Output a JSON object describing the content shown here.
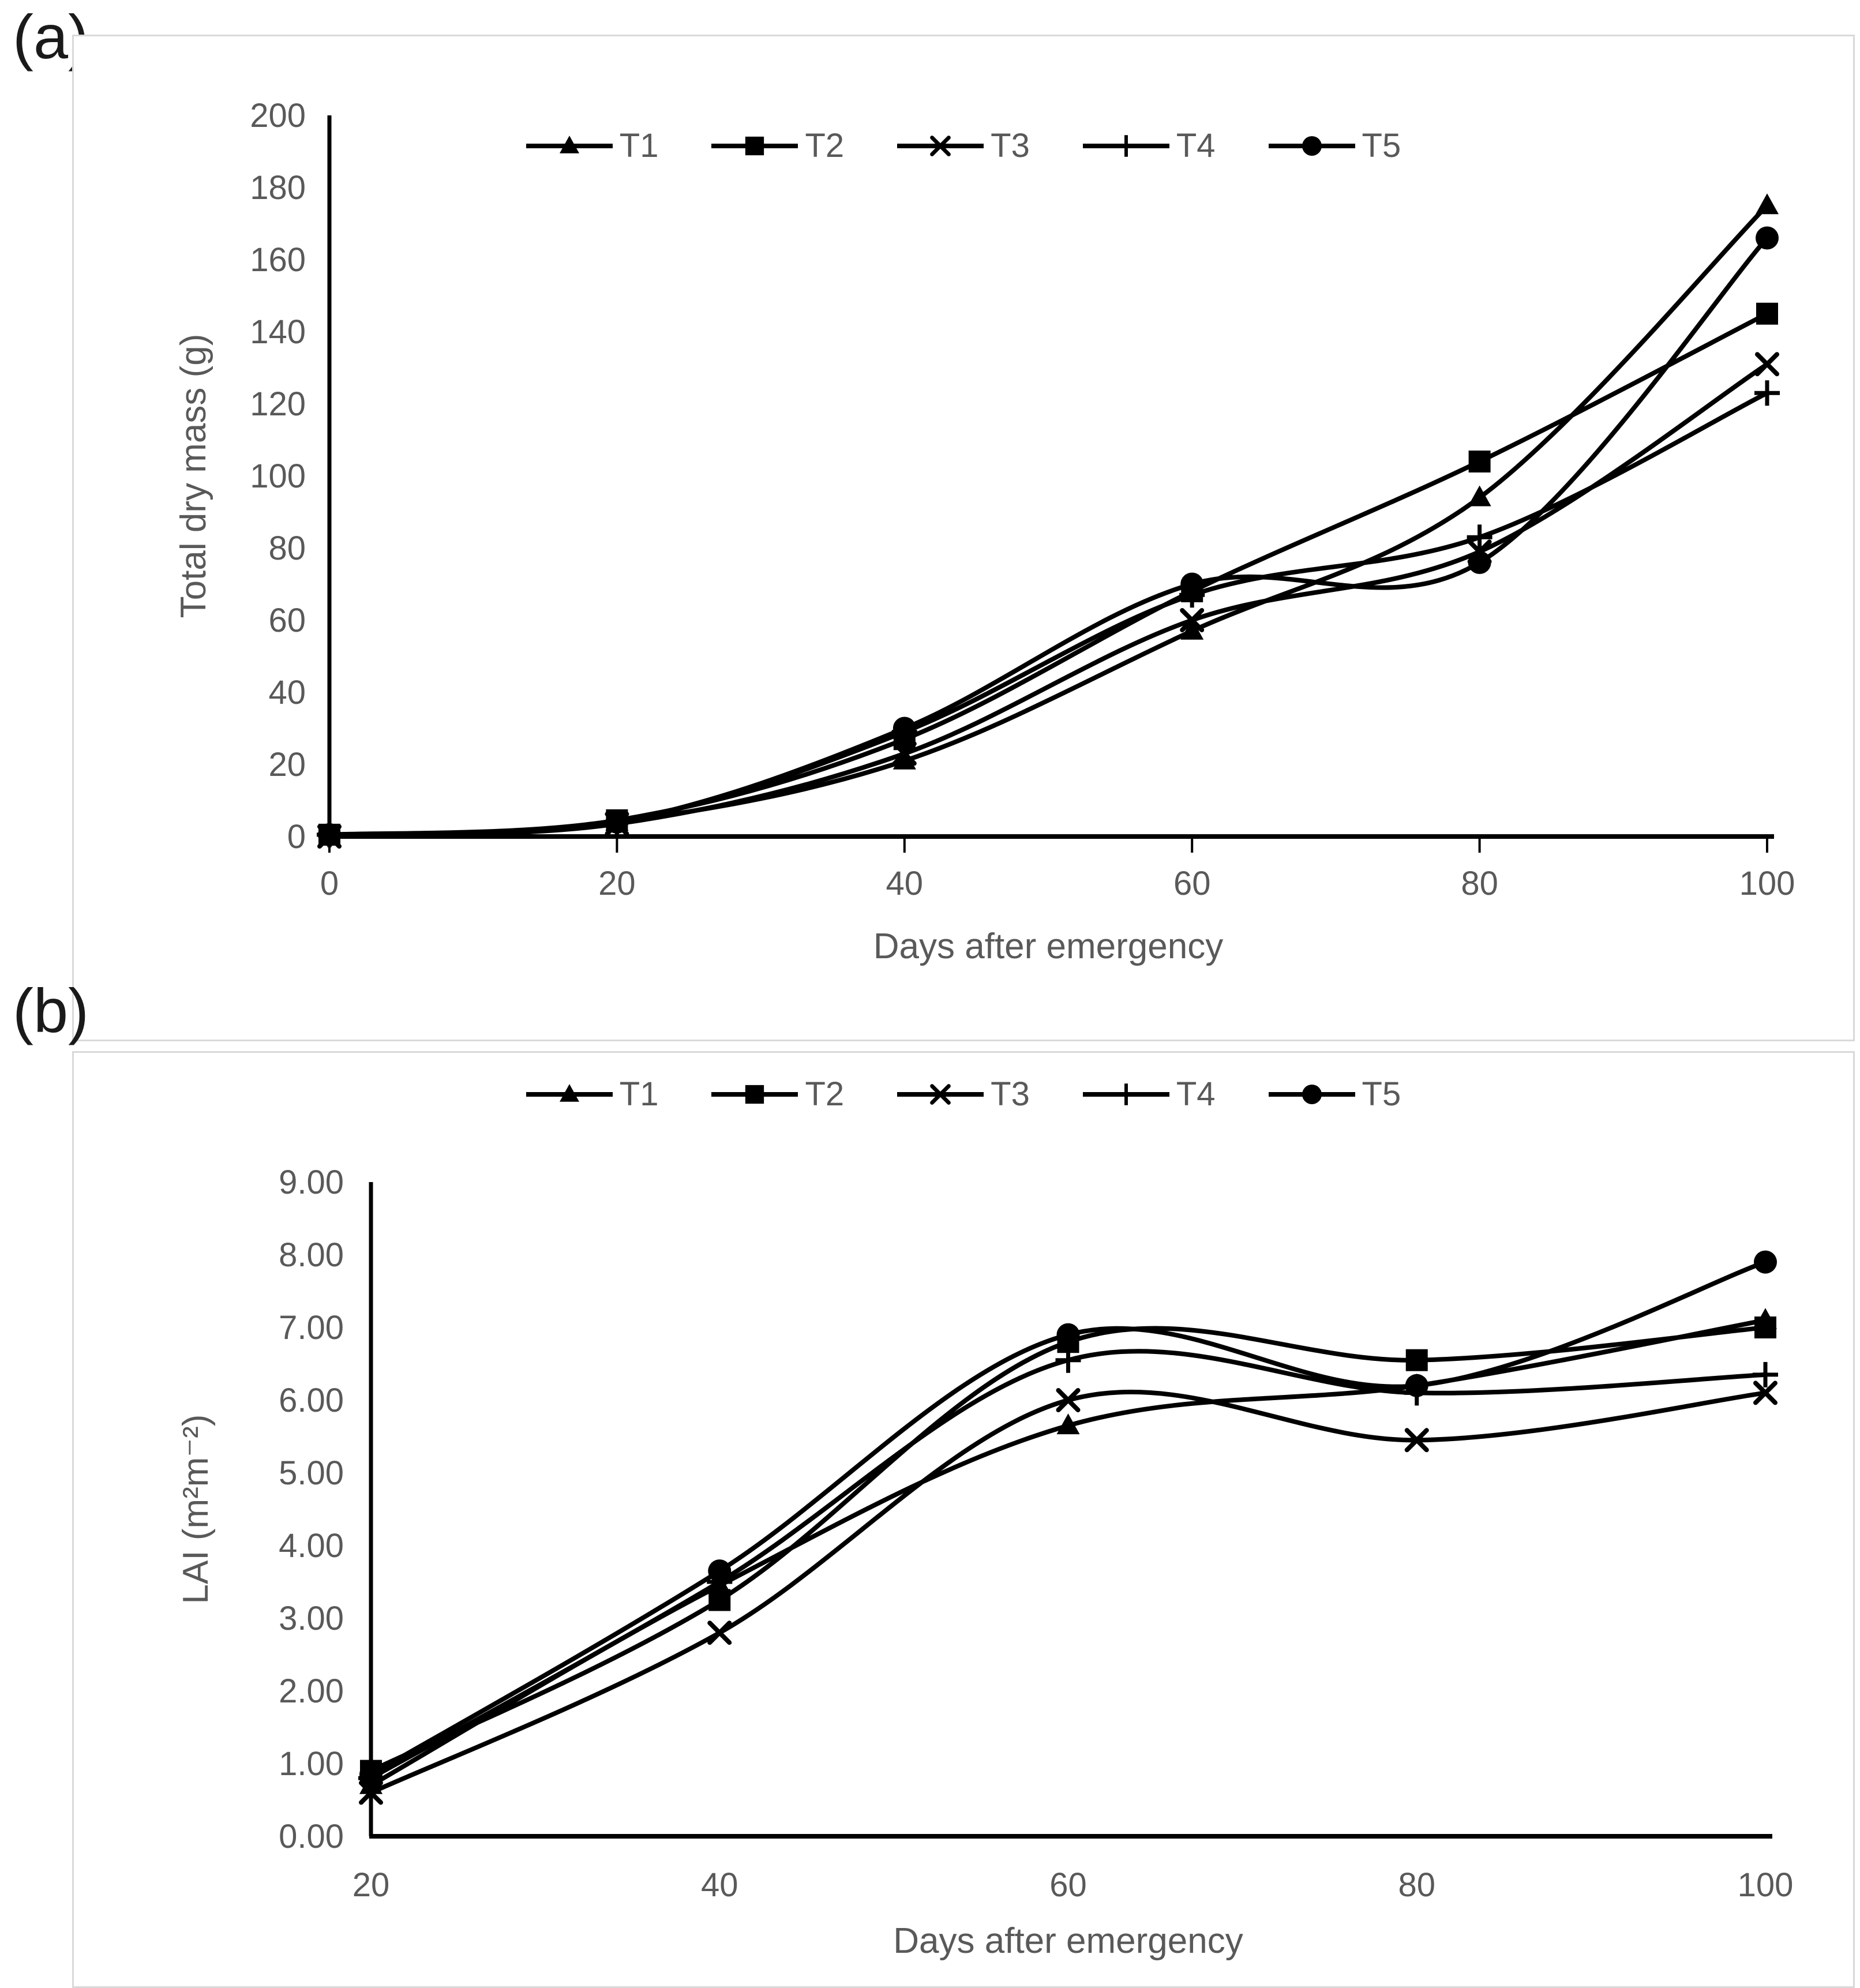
{
  "page": {
    "background": "#ffffff"
  },
  "colors": {
    "series_line": "#000000",
    "text": "#595959",
    "panel_label": "#1a1a1a",
    "chart_border": "#d9d9d9"
  },
  "chart_data": [
    {
      "type": "line",
      "panel_label": "(a)",
      "xlabel": "Days after emergency",
      "ylabel": "Total dry mass (g)",
      "xlim": [
        0,
        100
      ],
      "ylim": [
        0,
        200
      ],
      "grid": false,
      "legend_position": "top-center",
      "x": [
        0,
        20,
        40,
        60,
        80,
        100
      ],
      "x_ticks": [
        "0",
        "20",
        "40",
        "60",
        "80",
        "100"
      ],
      "y_ticks": [
        "0",
        "20",
        "40",
        "60",
        "80",
        "100",
        "120",
        "140",
        "160",
        "180",
        "200"
      ],
      "series": [
        {
          "name": "T1",
          "marker": "triangle",
          "values": [
            0,
            4,
            21,
            57,
            94,
            175
          ]
        },
        {
          "name": "T2",
          "marker": "square",
          "values": [
            0.5,
            4.5,
            27,
            68,
            104,
            145
          ]
        },
        {
          "name": "T3",
          "marker": "x",
          "values": [
            0,
            3.5,
            23,
            60,
            79,
            131
          ]
        },
        {
          "name": "T4",
          "marker": "plus",
          "values": [
            0.5,
            4,
            29,
            67,
            83,
            123
          ]
        },
        {
          "name": "T5",
          "marker": "circle",
          "values": [
            0.5,
            4,
            30,
            70,
            76,
            166
          ]
        }
      ]
    },
    {
      "type": "line",
      "panel_label": "(b)",
      "xlabel": "Days after emergency",
      "ylabel": "LAI (m²m⁻²)",
      "xlim": [
        20,
        100
      ],
      "ylim": [
        0,
        9
      ],
      "grid": false,
      "legend_position": "top-center",
      "x": [
        20,
        40,
        60,
        80,
        100
      ],
      "x_ticks": [
        "20",
        "40",
        "60",
        "80",
        "100"
      ],
      "y_ticks": [
        "0.00",
        "1.00",
        "2.00",
        "3.00",
        "4.00",
        "5.00",
        "6.00",
        "7.00",
        "8.00",
        "9.00"
      ],
      "series": [
        {
          "name": "T1",
          "marker": "triangle",
          "values": [
            0.7,
            3.45,
            5.65,
            6.2,
            7.1
          ]
        },
        {
          "name": "T2",
          "marker": "square",
          "values": [
            0.9,
            3.25,
            6.8,
            6.55,
            7.0
          ]
        },
        {
          "name": "T3",
          "marker": "x",
          "values": [
            0.6,
            2.8,
            6.0,
            5.45,
            6.1
          ]
        },
        {
          "name": "T4",
          "marker": "plus",
          "values": [
            0.8,
            3.5,
            6.55,
            6.1,
            6.35
          ]
        },
        {
          "name": "T5",
          "marker": "circle",
          "values": [
            0.85,
            3.65,
            6.9,
            6.2,
            7.9
          ]
        }
      ]
    }
  ]
}
